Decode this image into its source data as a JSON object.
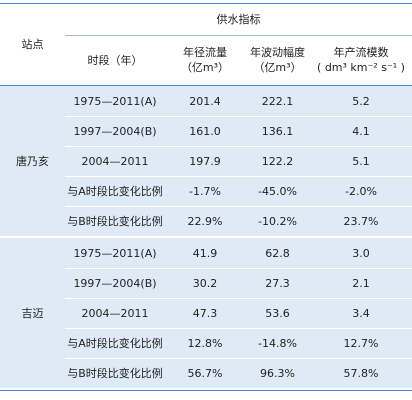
{
  "header": {
    "station": "站点",
    "group": "供水指标",
    "columns": [
      [
        "时段（年）"
      ],
      [
        "年径流量",
        "（亿m³）"
      ],
      [
        "年波动幅度",
        "（亿m³）"
      ],
      [
        "年产流模数",
        "( dm³ km⁻² s⁻¹ )"
      ]
    ]
  },
  "table": {
    "groups": [
      {
        "station": "唐乃亥",
        "rows": [
          [
            "1975—2011(A)",
            "201.4",
            "222.1",
            "5.2"
          ],
          [
            "1997—2004(B)",
            "161.0",
            "136.1",
            "4.1"
          ],
          [
            "2004—2011",
            "197.9",
            "122.2",
            "5.1"
          ],
          [
            "与A时段比变化比例",
            "-1.7%",
            "-45.0%",
            "-2.0%"
          ],
          [
            "与B时段比变化比例",
            "22.9%",
            "-10.2%",
            "23.7%"
          ]
        ]
      },
      {
        "station": "吉迈",
        "rows": [
          [
            "1975—2011(A)",
            "41.9",
            "62.8",
            "3.0"
          ],
          [
            "1997—2004(B)",
            "30.2",
            "27.3",
            "2.1"
          ],
          [
            "2004—2011",
            "47.3",
            "53.6",
            "3.4"
          ],
          [
            "与A时段比变化比例",
            "12.8%",
            "-14.8%",
            "12.7%"
          ],
          [
            "与B时段比变化比例",
            "56.7%",
            "96.3%",
            "57.8%"
          ]
        ]
      }
    ]
  }
}
